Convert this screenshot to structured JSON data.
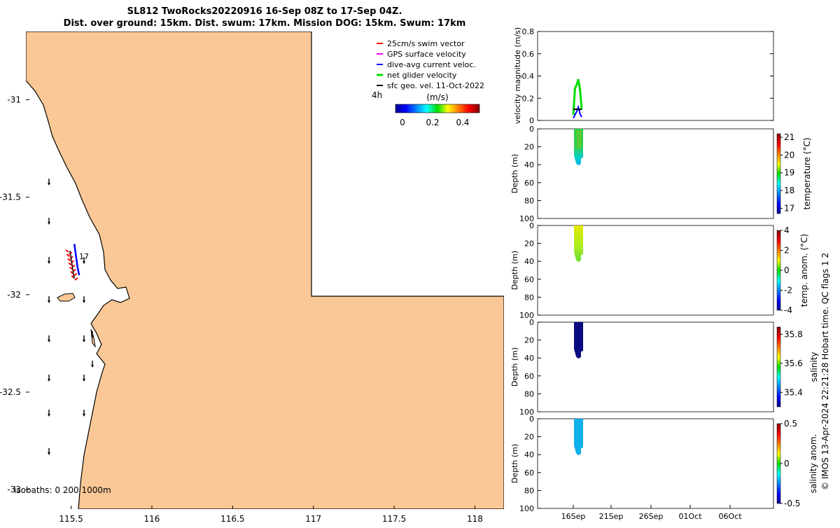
{
  "header": {
    "title_line1": "SL812 TwoRocks20220916 16-Sep 08Z to 17-Sep 04Z.",
    "title_line2": "Dist. over ground: 15km. Dist. swum: 17km. Mission DOG: 15km. Swum: 17km"
  },
  "map": {
    "x_ticks": [
      "115.5",
      "116",
      "116.5",
      "117",
      "117.5",
      "118"
    ],
    "y_ticks": [
      "-31",
      "-31.5",
      "-32",
      "-32.5",
      "-33"
    ],
    "land_color": "#f9c896",
    "sea_color": "#ffffff",
    "glider_label": "17",
    "isobath_label": "isobaths: 0   200  1000m",
    "legend": [
      {
        "label": "25cm/s swim vector",
        "color": "#ff0000"
      },
      {
        "label": "GPS surface velocity",
        "color": "#ff00ff"
      },
      {
        "label": "dive-avg current veloc.",
        "color": "#0000ff"
      },
      {
        "label": "net glider velocity",
        "color": "#00dd00"
      },
      {
        "label": "sfc geo. vel. 11-Oct-2022",
        "color": "#000000"
      }
    ],
    "time_label": "4h",
    "colorbar": {
      "title": "(m/s)",
      "ticks": [
        "0",
        "0.2",
        "0.4"
      ]
    }
  },
  "chart_data": [
    {
      "type": "scatter",
      "title": "SL812 TwoRocks20220916 16-Sep 08Z to 17-Sep 04Z.",
      "xlabel": "",
      "ylabel": "",
      "xlim": [
        115.22,
        118.18
      ],
      "ylim": [
        -33.1,
        -30.65
      ],
      "series": [
        {
          "name": "glider track",
          "x": [
            115.52,
            115.53,
            115.54,
            115.55
          ],
          "y": [
            -31.74,
            -31.8,
            -31.86,
            -31.9
          ]
        }
      ]
    },
    {
      "type": "line",
      "ylabel": "velocity magnitude (m/s)",
      "ylim": [
        0,
        0.8
      ],
      "yticks": [
        "0",
        "0.2",
        "0.4",
        "0.6",
        "0.8"
      ],
      "series": [
        {
          "name": "net glider velocity",
          "x": [
            "16-Sep 08Z",
            "16-Sep 12Z",
            "16-Sep 16Z",
            "16-Sep 20Z",
            "17-Sep 00Z",
            "17-Sep 04Z"
          ],
          "values": [
            0.05,
            0.29,
            0.32,
            0.37,
            0.28,
            0.1
          ]
        },
        {
          "name": "dive-avg current veloc.",
          "x": [
            "16-Sep 08Z",
            "16-Sep 12Z",
            "16-Sep 16Z",
            "16-Sep 20Z",
            "17-Sep 00Z",
            "17-Sep 04Z"
          ],
          "values": [
            0.02,
            0.05,
            0.08,
            0.12,
            0.06,
            0.03
          ]
        },
        {
          "name": "sfc geo. vel.",
          "x": [
            "16-Sep 08Z",
            "17-Sep 04Z"
          ],
          "values": [
            0.1,
            0.1
          ]
        }
      ]
    },
    {
      "type": "heatmap",
      "ylabel": "Depth (m)",
      "yticks": [
        "0",
        "20",
        "40",
        "60",
        "80",
        "100"
      ],
      "colorbar_label": "temperature (°C)",
      "colorbar_ticks": [
        "17",
        "18",
        "19",
        "20",
        "21"
      ],
      "value_range": [
        16.7,
        21.2
      ],
      "depth_max": 40,
      "values_note_surface": 18.5,
      "values_note_bottom": 17.7
    },
    {
      "type": "heatmap",
      "ylabel": "Depth (m)",
      "yticks": [
        "0",
        "20",
        "40",
        "60",
        "80",
        "100"
      ],
      "colorbar_label": "temp. anom. (°C)",
      "colorbar_ticks": [
        "-4",
        "-2",
        "0",
        "2",
        "4"
      ],
      "value_range": [
        -4,
        4
      ],
      "depth_max": 40
    },
    {
      "type": "heatmap",
      "ylabel": "Depth (m)",
      "yticks": [
        "0",
        "20",
        "40",
        "60",
        "80",
        "100"
      ],
      "colorbar_label": "salinity",
      "colorbar_ticks": [
        "35.4",
        "35.6",
        "35.8"
      ],
      "value_range": [
        35.3,
        35.85
      ],
      "depth_max": 40
    },
    {
      "type": "heatmap",
      "ylabel": "Depth (m)",
      "yticks": [
        "0",
        "20",
        "40",
        "60",
        "80",
        "100"
      ],
      "colorbar_label": "salinity anom.",
      "colorbar_ticks": [
        "-0.5",
        "0",
        "0.5"
      ],
      "value_range": [
        -0.5,
        0.5
      ],
      "depth_max": 40
    }
  ],
  "time_axis": {
    "ticks": [
      "16Sep",
      "21Sep",
      "26Sep",
      "01Oct",
      "06Oct"
    ]
  },
  "footer": {
    "credit": "© IMOS 13-Apr-2024 22:21:28 Hobart time. QC flags 1  2"
  }
}
